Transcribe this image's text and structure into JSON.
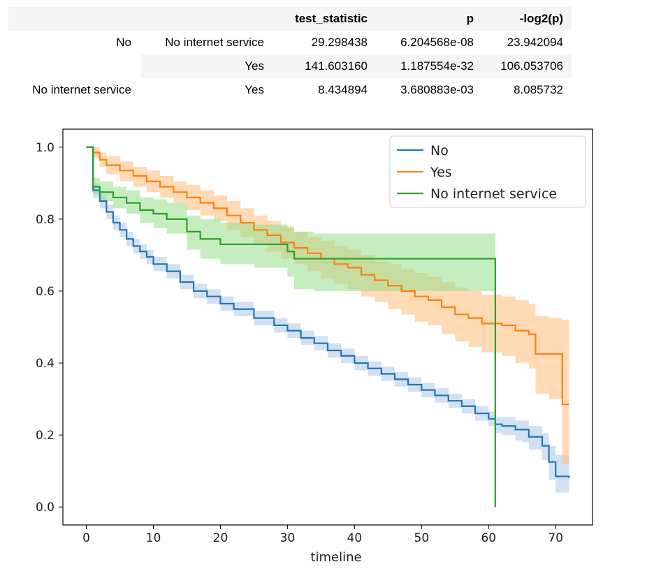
{
  "table": {
    "columns": [
      "test_statistic",
      "p",
      "-log2(p)"
    ],
    "rows": [
      {
        "level0": "No",
        "level1": "No internet service",
        "test_statistic": "29.298438",
        "p": "6.204568e-08",
        "neglog2p": "23.942094"
      },
      {
        "level0": "",
        "level1": "Yes",
        "test_statistic": "141.603160",
        "p": "1.187554e-32",
        "neglog2p": "106.053706"
      },
      {
        "level0": "No internet service",
        "level1": "Yes",
        "test_statistic": "8.434894",
        "p": "3.680883e-03",
        "neglog2p": "8.085732"
      }
    ]
  },
  "chart_data": {
    "type": "line",
    "step": true,
    "title": "",
    "xlabel": "timeline",
    "ylabel": "",
    "xlim": [
      -3.5,
      75.5
    ],
    "ylim": [
      -0.05,
      1.05
    ],
    "xticks": [
      "0",
      "10",
      "20",
      "30",
      "40",
      "50",
      "60",
      "70"
    ],
    "yticks": [
      "0.0",
      "0.2",
      "0.4",
      "0.6",
      "0.8",
      "1.0"
    ],
    "legend_position": "top-right",
    "series": [
      {
        "name": "No",
        "color": "#1f77b4",
        "fill": "#aec7e8",
        "x": [
          0,
          1,
          2,
          3,
          4,
          5,
          6,
          7,
          8,
          9,
          10,
          12,
          14,
          16,
          18,
          20,
          22,
          25,
          28,
          30,
          32,
          34,
          36,
          38,
          40,
          42,
          44,
          46,
          48,
          50,
          52,
          54,
          56,
          58,
          60,
          61,
          62,
          64,
          65,
          66,
          68,
          69,
          70,
          72
        ],
        "y": [
          1.0,
          0.88,
          0.85,
          0.82,
          0.79,
          0.77,
          0.745,
          0.725,
          0.71,
          0.695,
          0.675,
          0.655,
          0.625,
          0.6,
          0.585,
          0.565,
          0.55,
          0.525,
          0.505,
          0.49,
          0.47,
          0.455,
          0.435,
          0.42,
          0.4,
          0.385,
          0.37,
          0.355,
          0.34,
          0.325,
          0.31,
          0.295,
          0.28,
          0.26,
          0.245,
          0.23,
          0.225,
          0.215,
          0.215,
          0.195,
          0.17,
          0.125,
          0.085,
          0.08
        ],
        "lower": [
          1.0,
          0.86,
          0.83,
          0.8,
          0.77,
          0.75,
          0.725,
          0.705,
          0.69,
          0.675,
          0.655,
          0.635,
          0.605,
          0.58,
          0.565,
          0.545,
          0.53,
          0.505,
          0.485,
          0.47,
          0.45,
          0.435,
          0.415,
          0.4,
          0.38,
          0.365,
          0.35,
          0.335,
          0.32,
          0.305,
          0.29,
          0.275,
          0.26,
          0.24,
          0.225,
          0.205,
          0.2,
          0.185,
          0.18,
          0.16,
          0.13,
          0.075,
          0.04,
          0.035
        ],
        "upper": [
          1.0,
          0.9,
          0.87,
          0.84,
          0.81,
          0.79,
          0.765,
          0.745,
          0.73,
          0.715,
          0.695,
          0.675,
          0.645,
          0.62,
          0.605,
          0.585,
          0.57,
          0.545,
          0.525,
          0.51,
          0.49,
          0.475,
          0.455,
          0.44,
          0.42,
          0.405,
          0.39,
          0.375,
          0.36,
          0.345,
          0.33,
          0.315,
          0.3,
          0.28,
          0.265,
          0.25,
          0.25,
          0.24,
          0.24,
          0.225,
          0.205,
          0.17,
          0.145,
          0.145
        ]
      },
      {
        "name": "Yes",
        "color": "#ff7f0e",
        "fill": "#ffbb78",
        "x": [
          0,
          1,
          2,
          3,
          5,
          7,
          9,
          11,
          13,
          15,
          17,
          19,
          21,
          23,
          25,
          27,
          29,
          31,
          33,
          35,
          37,
          39,
          41,
          43,
          45,
          47,
          49,
          51,
          53,
          55,
          57,
          59,
          62,
          64,
          66,
          67,
          69,
          71,
          72
        ],
        "y": [
          1.0,
          0.985,
          0.965,
          0.95,
          0.935,
          0.92,
          0.905,
          0.89,
          0.875,
          0.86,
          0.845,
          0.83,
          0.81,
          0.79,
          0.77,
          0.755,
          0.735,
          0.72,
          0.705,
          0.69,
          0.675,
          0.665,
          0.645,
          0.63,
          0.615,
          0.6,
          0.585,
          0.575,
          0.555,
          0.535,
          0.525,
          0.51,
          0.505,
          0.49,
          0.48,
          0.425,
          0.425,
          0.285,
          0.285
        ],
        "lower": [
          1.0,
          0.97,
          0.945,
          0.925,
          0.905,
          0.89,
          0.875,
          0.86,
          0.845,
          0.825,
          0.81,
          0.795,
          0.77,
          0.75,
          0.73,
          0.71,
          0.69,
          0.675,
          0.655,
          0.635,
          0.62,
          0.605,
          0.585,
          0.57,
          0.55,
          0.535,
          0.515,
          0.505,
          0.48,
          0.46,
          0.445,
          0.43,
          0.42,
          0.4,
          0.385,
          0.315,
          0.3,
          0.12,
          0.12
        ],
        "upper": [
          1.0,
          1.0,
          0.985,
          0.975,
          0.96,
          0.945,
          0.935,
          0.92,
          0.905,
          0.895,
          0.88,
          0.865,
          0.85,
          0.83,
          0.81,
          0.795,
          0.78,
          0.765,
          0.75,
          0.74,
          0.725,
          0.715,
          0.7,
          0.685,
          0.675,
          0.66,
          0.65,
          0.64,
          0.625,
          0.61,
          0.6,
          0.59,
          0.585,
          0.575,
          0.565,
          0.53,
          0.525,
          0.52,
          0.52
        ]
      },
      {
        "name": "No internet service",
        "color": "#2ca02c",
        "fill": "#98df8a",
        "x": [
          0,
          1,
          2,
          4,
          6,
          8,
          10,
          12,
          15,
          17,
          20,
          25,
          30,
          31,
          34,
          61,
          61
        ],
        "y": [
          1.0,
          0.89,
          0.875,
          0.86,
          0.845,
          0.825,
          0.815,
          0.8,
          0.765,
          0.745,
          0.73,
          0.73,
          0.71,
          0.69,
          0.69,
          0.69,
          0.0
        ],
        "lower": [
          1.0,
          0.87,
          0.85,
          0.83,
          0.815,
          0.79,
          0.775,
          0.76,
          0.715,
          0.69,
          0.675,
          0.665,
          0.64,
          0.605,
          0.6,
          0.6,
          0.6
        ],
        "upper": [
          1.0,
          0.915,
          0.905,
          0.89,
          0.88,
          0.86,
          0.855,
          0.845,
          0.81,
          0.8,
          0.79,
          0.785,
          0.775,
          0.765,
          0.76,
          0.76,
          0.76
        ]
      }
    ]
  }
}
